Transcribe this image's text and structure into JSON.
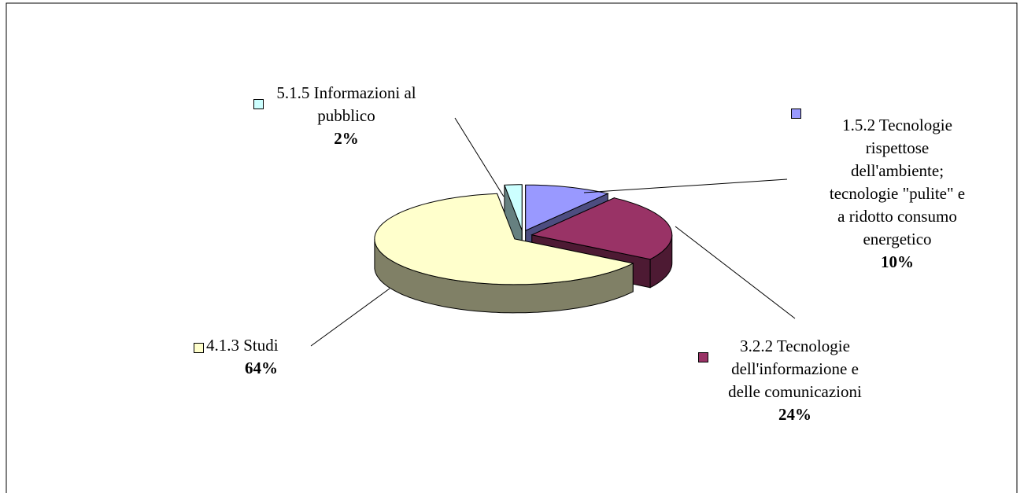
{
  "chart_data": {
    "type": "pie",
    "categories": [
      "1.5.2 Tecnologie\nrispettose\ndell'ambiente;\ntecnologie \"pulite\" e\na ridotto consumo\nenergetico",
      "3.2.2 Tecnologie\ndell'informazione e\ndelle comunicazioni",
      "4.1.3 Studi",
      "5.1.5 Informazioni al\npubblico"
    ],
    "values": [
      10,
      24,
      64,
      2
    ],
    "value_labels": [
      "10%",
      "24%",
      "64%",
      "2%"
    ],
    "colors": [
      "#9999ff",
      "#993366",
      "#ffffcc",
      "#ccffff"
    ]
  }
}
